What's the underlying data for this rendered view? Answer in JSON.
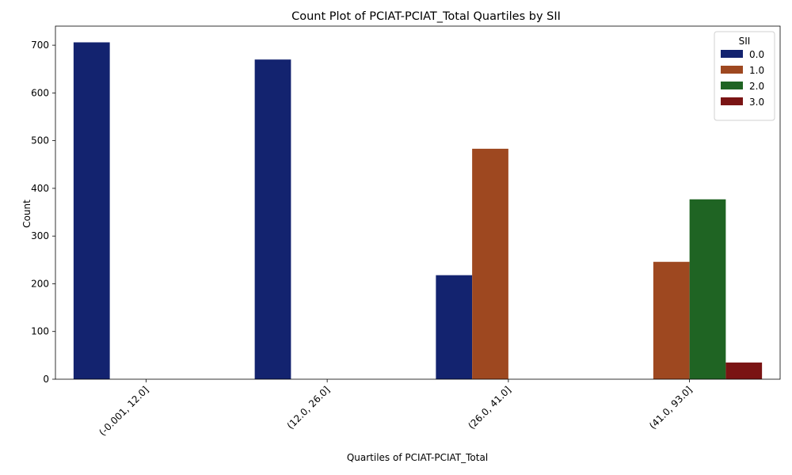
{
  "chart_data": {
    "type": "bar",
    "title": "Count Plot of PCIAT-PCIAT_Total Quartiles by SII",
    "xlabel": "Quartiles of PCIAT-PCIAT_Total",
    "ylabel": "Count",
    "categories": [
      "(-0.001, 12.0]",
      "(12.0, 26.0]",
      "(26.0, 41.0]",
      "(41.0, 93.0]"
    ],
    "ylim": [
      0,
      740
    ],
    "yticks": [
      0,
      100,
      200,
      300,
      400,
      500,
      600,
      700
    ],
    "legend": {
      "title": "SII",
      "placement": "top-right"
    },
    "grid": false,
    "series": [
      {
        "name": "0.0",
        "color": "#13236f",
        "values": [
          706,
          670,
          218,
          0
        ]
      },
      {
        "name": "1.0",
        "color": "#9e4820",
        "values": [
          0,
          0,
          483,
          246
        ]
      },
      {
        "name": "2.0",
        "color": "#1f6423",
        "values": [
          0,
          0,
          0,
          377
        ]
      },
      {
        "name": "3.0",
        "color": "#7a1414",
        "values": [
          0,
          0,
          0,
          35
        ]
      }
    ]
  }
}
